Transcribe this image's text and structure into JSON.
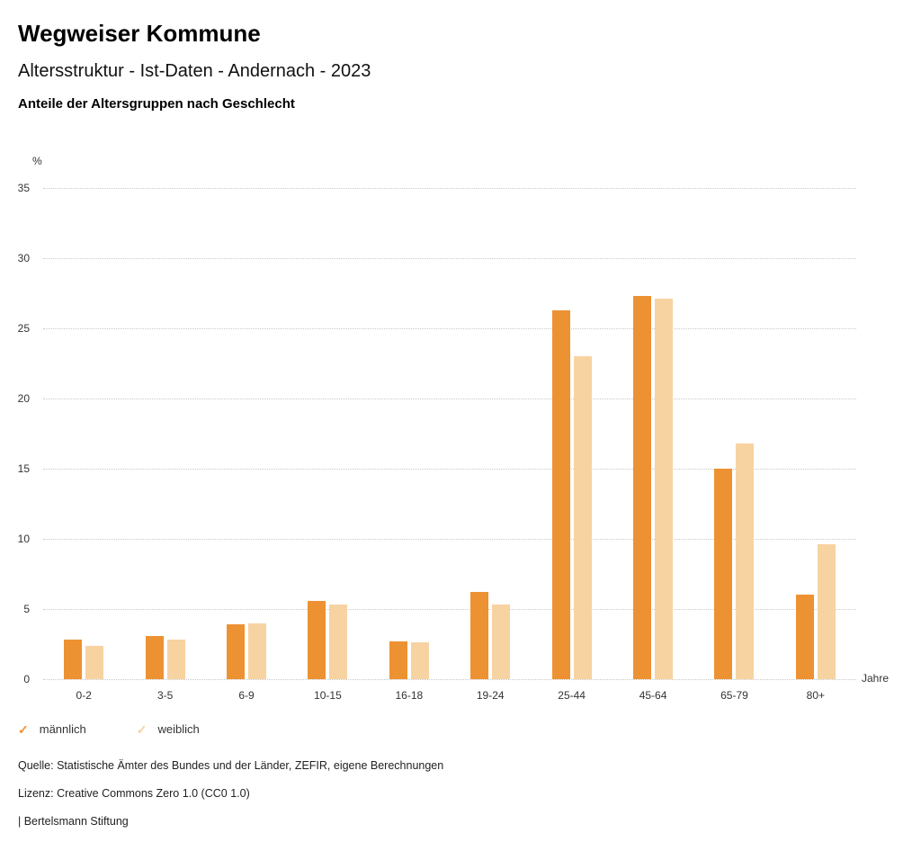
{
  "header": {
    "title": "Wegweiser Kommune",
    "subtitle": "Altersstruktur - Ist-Daten - Andernach - 2023",
    "chart_heading": "Anteile der Altersgruppen nach Geschlecht"
  },
  "chart_data": {
    "type": "bar",
    "title": "Anteile der Altersgruppen nach Geschlecht",
    "categories": [
      "0-2",
      "3-5",
      "6-9",
      "10-15",
      "16-18",
      "19-24",
      "25-44",
      "45-64",
      "65-79",
      "80+"
    ],
    "series": [
      {
        "name": "männlich",
        "color": "#ED9233",
        "values": [
          2.8,
          3.1,
          3.9,
          5.6,
          2.7,
          6.2,
          26.3,
          27.3,
          15.0,
          6.0
        ]
      },
      {
        "name": "weiblich",
        "color": "#F7D3A2",
        "values": [
          2.4,
          2.8,
          4.0,
          5.3,
          2.6,
          5.3,
          23.0,
          27.1,
          16.8,
          9.6
        ]
      }
    ],
    "xlabel": "Jahre",
    "ylabel": "%",
    "ylim": [
      0,
      35
    ],
    "ytick_interval": 5,
    "grid": true,
    "gridline_color": "#c9c9c9",
    "legend_position": "bottom",
    "legend_marker": "check"
  },
  "footer": {
    "source": "Quelle: Statistische Ämter des Bundes und der Länder, ZEFIR, eigene Berechnungen",
    "license": "Lizenz: Creative Commons Zero 1.0 (CC0 1.0)",
    "brand": "| Bertelsmann Stiftung"
  }
}
